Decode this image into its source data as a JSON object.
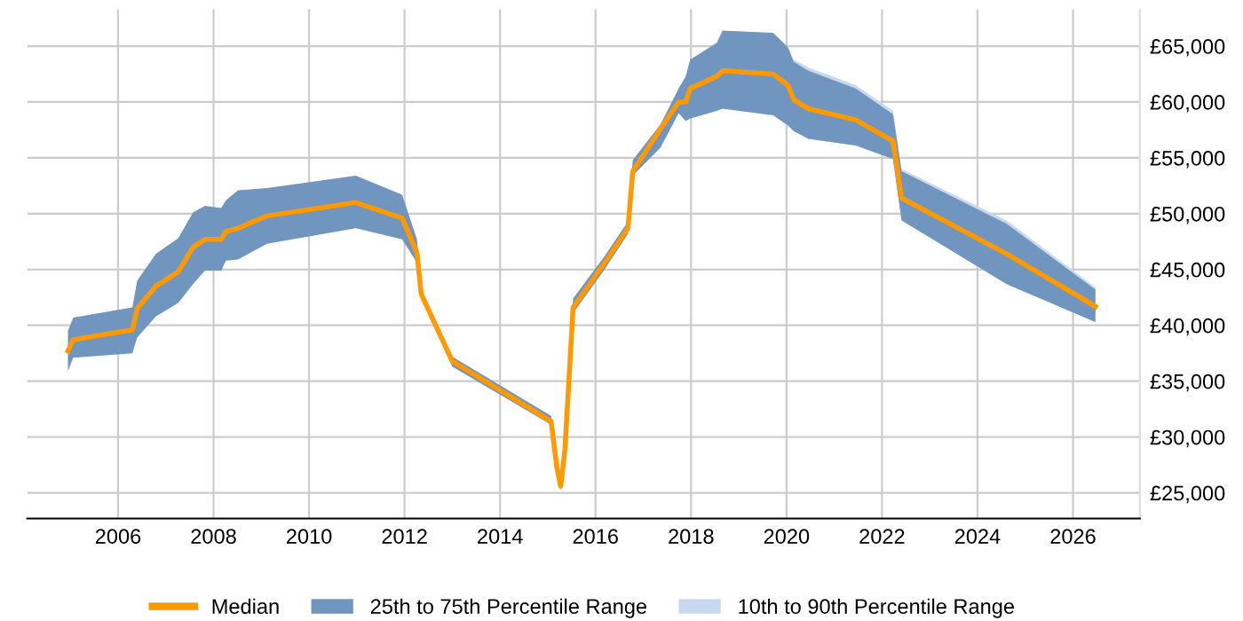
{
  "chart_data": {
    "type": "line",
    "x": [
      2004.95,
      2005.06,
      2006.3,
      2006.4,
      2006.79,
      2007.26,
      2007.57,
      2007.82,
      2008.16,
      2008.26,
      2008.51,
      2009.12,
      2010.98,
      2011.95,
      2012.26,
      2012.35,
      2013.0,
      2015.07,
      2015.19,
      2015.27,
      2015.36,
      2015.53,
      2016.19,
      2016.68,
      2016.78,
      2017.36,
      2017.74,
      2017.89,
      2017.98,
      2018.54,
      2018.66,
      2019.72,
      2020.03,
      2020.15,
      2020.46,
      2021.45,
      2022.23,
      2022.41,
      2024.61,
      2026.47
    ],
    "series": [
      {
        "name": "Median",
        "type": "line",
        "color": "#ff9900",
        "values": [
          37700,
          38700,
          39600,
          41500,
          43500,
          44800,
          47000,
          47700,
          47700,
          48400,
          48700,
          49800,
          51000,
          49600,
          46500,
          42800,
          36800,
          31400,
          27300,
          25600,
          28900,
          41600,
          45600,
          48700,
          53800,
          57600,
          60000,
          60000,
          61200,
          62300,
          62800,
          62500,
          61500,
          60200,
          59400,
          58400,
          56500,
          51400,
          46400,
          41700
        ]
      },
      {
        "name": "25th to 75th Percentile Range",
        "type": "area",
        "color": "#7096c0",
        "values": [
          null,
          null,
          null,
          null,
          null,
          null,
          null,
          null,
          null,
          null,
          null,
          null,
          null,
          null,
          null,
          null,
          null,
          null,
          null,
          null,
          null,
          null,
          null,
          null,
          null,
          null,
          null,
          null,
          null,
          null,
          null,
          null,
          null,
          null,
          null,
          null,
          null,
          null,
          null,
          null
        ],
        "lower": [
          35900,
          37100,
          37500,
          38900,
          40800,
          42000,
          43700,
          44900,
          44900,
          45800,
          45900,
          47300,
          48700,
          47700,
          45600,
          42400,
          36300,
          31100,
          26800,
          25200,
          28400,
          41100,
          45000,
          48200,
          53400,
          55900,
          59000,
          58300,
          58500,
          59200,
          59400,
          58800,
          57900,
          57400,
          56700,
          56100,
          54900,
          49400,
          43700,
          40300
        ],
        "upper": [
          39500,
          40700,
          41600,
          44000,
          46400,
          47800,
          50100,
          50700,
          50500,
          51200,
          52100,
          52300,
          53400,
          51700,
          47700,
          43200,
          37200,
          31900,
          27800,
          26000,
          29400,
          42400,
          46200,
          49300,
          54800,
          58000,
          61200,
          62300,
          63800,
          65300,
          66400,
          66200,
          64900,
          63600,
          62800,
          61200,
          58900,
          53800,
          49100,
          43200
        ]
      },
      {
        "name": "10th to 90th Percentile Range",
        "type": "area",
        "color": "#c6d9ee",
        "values": [
          null,
          null,
          null,
          null,
          null,
          null,
          null,
          null,
          null,
          null,
          null,
          null,
          null,
          null,
          null,
          null,
          null,
          null,
          null,
          null,
          null,
          null,
          null,
          null,
          null,
          null,
          null,
          null,
          null,
          null,
          null,
          null,
          null,
          null,
          null,
          null,
          null,
          null,
          null,
          null
        ],
        "lower": [
          null,
          null,
          null,
          null,
          null,
          null,
          null,
          null,
          null,
          null,
          null,
          null,
          null,
          null,
          null,
          null,
          null,
          null,
          null,
          null,
          null,
          null,
          null,
          null,
          null,
          null,
          null,
          null,
          null,
          null,
          null,
          null,
          57900,
          57400,
          56700,
          56100,
          54900,
          49400,
          43700,
          40300
        ],
        "upper": [
          null,
          null,
          null,
          null,
          null,
          null,
          null,
          null,
          null,
          null,
          null,
          null,
          null,
          null,
          null,
          null,
          null,
          null,
          null,
          null,
          null,
          null,
          null,
          null,
          null,
          null,
          null,
          null,
          null,
          null,
          null,
          null,
          64900,
          63800,
          63100,
          61500,
          59200,
          54000,
          49400,
          43400
        ]
      }
    ],
    "xlim": [
      2004.1,
      2027.4
    ],
    "ylim": [
      22700,
      68300
    ],
    "xticks": [
      2006,
      2008,
      2010,
      2012,
      2014,
      2016,
      2018,
      2020,
      2022,
      2024,
      2026
    ],
    "yticks": [
      {
        "value": 25000,
        "label": "£25,000"
      },
      {
        "value": 30000,
        "label": "£30,000"
      },
      {
        "value": 35000,
        "label": "£35,000"
      },
      {
        "value": 40000,
        "label": "£40,000"
      },
      {
        "value": 45000,
        "label": "£45,000"
      },
      {
        "value": 50000,
        "label": "£50,000"
      },
      {
        "value": 55000,
        "label": "£55,000"
      },
      {
        "value": 60000,
        "label": "£60,000"
      },
      {
        "value": 65000,
        "label": "£65,000"
      }
    ],
    "grid": true,
    "legend": "bottom",
    "marker": "none",
    "line_style": "solid"
  }
}
